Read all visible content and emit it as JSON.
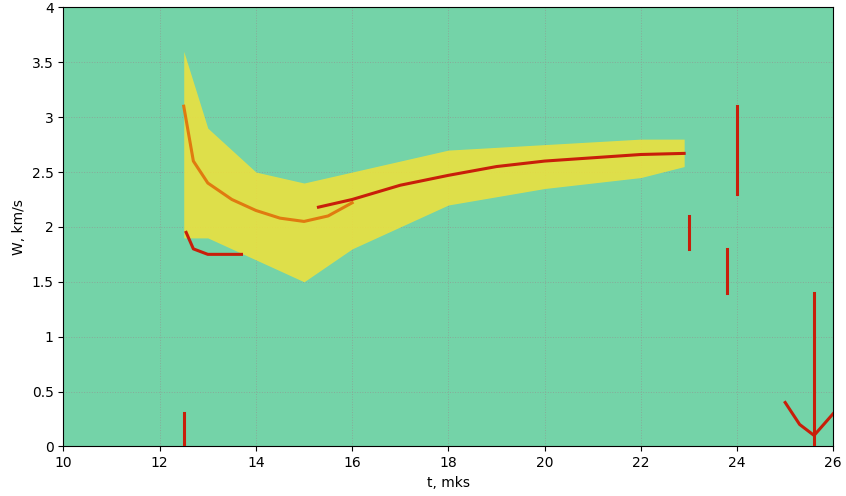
{
  "chart_data": {
    "type": "line",
    "xlabel": "t, mks",
    "ylabel": "W, km/s",
    "xlim": [
      10,
      26
    ],
    "xticks": [
      10,
      12,
      14,
      16,
      18,
      20,
      22,
      24,
      26
    ],
    "ylim": [
      0,
      4
    ],
    "yticks": [
      0,
      0.5,
      1,
      1.5,
      2,
      2.5,
      3,
      3.5,
      4
    ],
    "grid": true,
    "series": [
      {
        "type": "band",
        "color": "#f2e23a",
        "x": [
          12.5,
          13,
          14,
          15,
          16,
          18,
          20,
          22,
          22.9
        ],
        "low": [
          1.9,
          1.9,
          1.7,
          1.5,
          1.8,
          2.2,
          2.35,
          2.45,
          2.55
        ],
        "high": [
          3.6,
          2.9,
          2.5,
          2.4,
          2.5,
          2.7,
          2.75,
          2.8,
          2.8
        ]
      },
      {
        "type": "line",
        "color": "#e07a10",
        "x": [
          12.5,
          12.7,
          13,
          13.5,
          14,
          14.5,
          15,
          15.5,
          16
        ],
        "values": [
          3.1,
          2.6,
          2.4,
          2.25,
          2.15,
          2.08,
          2.05,
          2.1,
          2.22
        ]
      },
      {
        "type": "line",
        "color": "#c81e0a",
        "x": [
          15.3,
          16,
          17,
          18,
          19,
          20,
          21,
          22,
          22.9
        ],
        "values": [
          2.18,
          2.25,
          2.38,
          2.47,
          2.55,
          2.6,
          2.63,
          2.66,
          2.67
        ]
      },
      {
        "type": "line",
        "color": "#c81e0a",
        "x": [
          12.55,
          12.7,
          13,
          13.5,
          13.7
        ],
        "values": [
          1.95,
          1.8,
          1.75,
          1.75,
          1.75
        ]
      },
      {
        "type": "line",
        "color": "#c81e0a",
        "x": [
          12.5,
          12.5
        ],
        "values": [
          0,
          0.3
        ]
      },
      {
        "type": "line",
        "color": "#c81e0a",
        "x": [
          23,
          23
        ],
        "values": [
          1.8,
          2.1
        ]
      },
      {
        "type": "line",
        "color": "#c81e0a",
        "x": [
          23.8,
          23.8
        ],
        "values": [
          1.4,
          1.8
        ]
      },
      {
        "type": "line",
        "color": "#c81e0a",
        "x": [
          24,
          24
        ],
        "values": [
          2.3,
          3.1
        ]
      },
      {
        "type": "line",
        "color": "#c81e0a",
        "x": [
          25.6,
          25.6
        ],
        "values": [
          0,
          1.4
        ]
      },
      {
        "type": "line",
        "color": "#c81e0a",
        "x": [
          25,
          25.3,
          25.6,
          26
        ],
        "values": [
          0.4,
          0.2,
          0.1,
          0.3
        ]
      }
    ]
  }
}
